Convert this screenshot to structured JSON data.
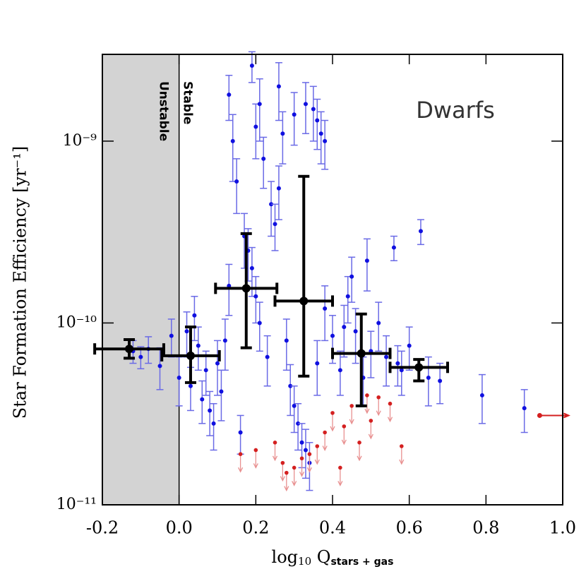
{
  "chart_data": {
    "type": "scatter",
    "y_label": "Star Formation Efficiency [yr⁻¹]",
    "x_label": [
      "log",
      "10",
      " Q",
      "stars + gas"
    ],
    "annotations": {
      "panel": "Dwarfs",
      "left_region": "Unstable",
      "right_region": "Stable"
    },
    "shaded_region": {
      "x": [
        -0.2,
        0.0
      ],
      "color": "#d3d3d3"
    },
    "xlim": [
      -0.2,
      1.0
    ],
    "ylim": [
      1e-11,
      3e-09
    ],
    "log_y": true,
    "xticks": [
      -0.2,
      {
        "value": 0.0,
        "label": "0.0"
      },
      0.2,
      0.4,
      0.6,
      0.8,
      {
        "value": 1.0,
        "label": "1.0"
      }
    ],
    "yticks": [
      {
        "value": 1e-11,
        "label": "10⁻¹¹"
      },
      {
        "value": 1e-10,
        "label": "10⁻¹⁰"
      },
      {
        "value": 1e-09,
        "label": "10⁻⁹"
      }
    ],
    "detections": {
      "color": "#1010e0",
      "errcolor": "#6a6ae6",
      "x": [
        -0.12,
        -0.08,
        -0.1,
        -0.05,
        -0.02,
        0.0,
        0.02,
        0.03,
        0.05,
        0.06,
        0.08,
        0.07,
        0.04,
        0.09,
        0.1,
        0.11,
        0.12,
        0.13,
        0.14,
        0.15,
        0.13,
        0.16,
        0.17,
        0.18,
        0.19,
        0.2,
        0.21,
        0.2,
        0.22,
        0.23,
        0.24,
        0.25,
        0.26,
        0.27,
        0.28,
        0.29,
        0.3,
        0.31,
        0.32,
        0.33,
        0.34,
        0.3,
        0.33,
        0.35,
        0.36,
        0.37,
        0.38,
        0.26,
        0.19,
        0.21,
        0.36,
        0.38,
        0.4,
        0.42,
        0.44,
        0.46,
        0.48,
        0.5,
        0.52,
        0.54,
        0.56,
        0.58,
        0.6,
        0.63,
        0.65,
        0.68,
        0.79,
        0.9,
        0.45,
        0.49,
        0.43,
        0.57
      ],
      "values": [
        7e-11,
        7.2e-11,
        6.5e-11,
        5.8e-11,
        8.5e-11,
        5e-11,
        9e-11,
        4.5e-11,
        7.5e-11,
        3.8e-11,
        3.3e-11,
        5.5e-11,
        1.1e-10,
        2.8e-11,
        6e-11,
        4.2e-11,
        8e-11,
        1.6e-10,
        1e-09,
        6e-10,
        1.8e-09,
        2.5e-11,
        3e-10,
        2.5e-10,
        2e-10,
        1.4e-10,
        1e-10,
        1.2e-09,
        8e-10,
        6.5e-11,
        4.5e-10,
        3.5e-10,
        5.5e-10,
        1.1e-09,
        8e-11,
        4.5e-11,
        3.5e-11,
        2.8e-11,
        2.2e-11,
        2e-11,
        1.7e-11,
        1.4e-09,
        1.6e-09,
        1.5e-09,
        1.3e-09,
        1.1e-09,
        1e-09,
        2e-09,
        2.6e-09,
        1.6e-09,
        6e-11,
        1.2e-10,
        8.5e-11,
        5.5e-11,
        1.4e-10,
        9e-11,
        5e-11,
        7e-11,
        1e-10,
        6.5e-11,
        2.6e-10,
        5.5e-11,
        7.5e-11,
        3.2e-10,
        5e-11,
        4.8e-11,
        4e-11,
        3.4e-11,
        1.8e-10,
        2.2e-10,
        9.5e-11,
        6e-11
      ],
      "yerr": [
        1e-11,
        1.2e-11,
        9e-12,
        1.5e-11,
        2e-11,
        1.5e-11,
        2.5e-11,
        1.2e-11,
        2e-11,
        1e-11,
        9e-12,
        1.5e-11,
        3e-11,
        8e-12,
        2e-11,
        1.3e-11,
        2.5e-11,
        5e-11,
        4e-10,
        2e-10,
        5e-10,
        6e-12,
        1e-10,
        8e-11,
        6e-11,
        4e-11,
        3e-11,
        4e-10,
        2.5e-10,
        2e-11,
        1.5e-10,
        1e-10,
        1.8e-10,
        3.5e-10,
        2.5e-11,
        1.4e-11,
        1e-11,
        8e-12,
        6e-12,
        6e-12,
        5e-12,
        4.5e-10,
        5e-10,
        5e-10,
        4e-10,
        3.5e-10,
        3e-10,
        7e-10,
        5e-10,
        6e-10,
        2e-11,
        4e-11,
        2.5e-11,
        1.5e-11,
        4e-11,
        3e-11,
        1.5e-11,
        2e-11,
        3e-11,
        2e-11,
        4e-11,
        1.5e-11,
        2e-11,
        5e-11,
        1.5e-11,
        1.2e-11,
        1.2e-11,
        9e-12,
        5e-11,
        7e-11,
        3e-11,
        1.5e-11
      ]
    },
    "upper_limits": {
      "color": "#d42020",
      "x": [
        0.16,
        0.2,
        0.25,
        0.27,
        0.28,
        0.3,
        0.32,
        0.34,
        0.36,
        0.38,
        0.4,
        0.43,
        0.45,
        0.47,
        0.5,
        0.52,
        0.55,
        0.58,
        0.49,
        0.42
      ],
      "values": [
        1.9e-11,
        2e-11,
        2.2e-11,
        1.7e-11,
        1.5e-11,
        1.6e-11,
        1.8e-11,
        1.9e-11,
        2.1e-11,
        2.5e-11,
        3.2e-11,
        2.7e-11,
        3.5e-11,
        2.2e-11,
        2.9e-11,
        3.9e-11,
        3.6e-11,
        2.1e-11,
        4e-11,
        1.6e-11
      ]
    },
    "x_lower_limits": {
      "color": "#d42020",
      "x": [
        0.94
      ],
      "values": [
        3.1e-11
      ]
    },
    "bins": {
      "color": "#000000",
      "x": [
        -0.13,
        0.03,
        0.175,
        0.325,
        0.475,
        0.625
      ],
      "xerr": [
        0.09,
        0.075,
        0.08,
        0.075,
        0.075,
        0.075
      ],
      "values": [
        7.2e-11,
        6.6e-11,
        1.55e-10,
        1.32e-10,
        6.8e-11,
        5.7e-11
      ],
      "yerr_minus": [
        8e-12,
        1.9e-11,
        8.2e-11,
        8.1e-11,
        3.3e-11,
        9e-12
      ],
      "yerr_plus": [
        9e-12,
        2.9e-11,
        1.55e-10,
        5.08e-10,
        4.4e-11,
        6e-12
      ]
    }
  }
}
